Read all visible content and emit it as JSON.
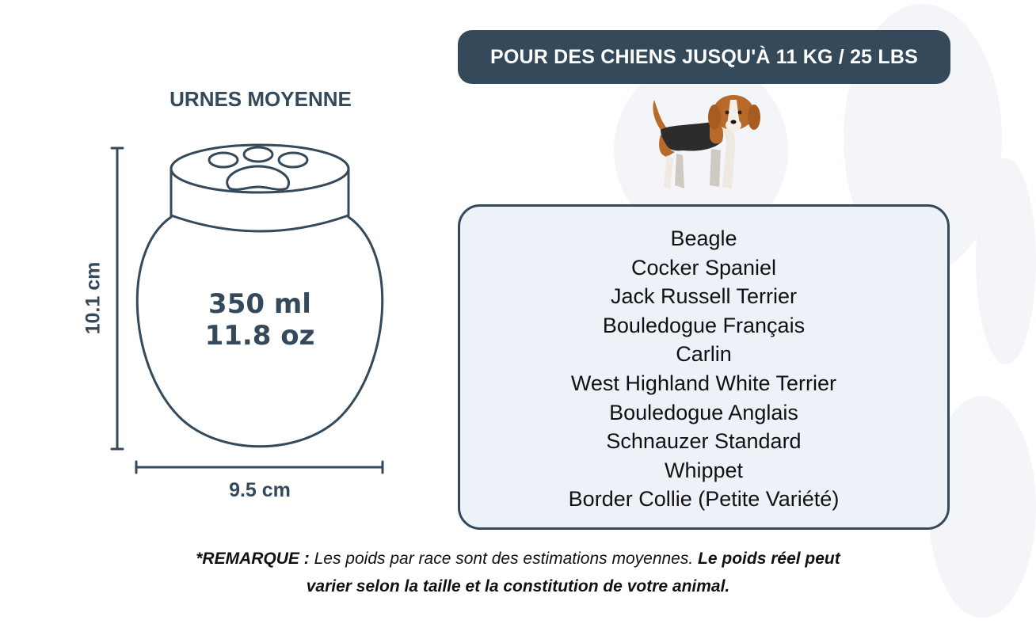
{
  "banner": {
    "text": "POUR DES CHIENS JUSQU'À 11 KG / 25 LBS"
  },
  "urn": {
    "title": "URNES MOYENNE",
    "volume_ml": "350 ml",
    "volume_oz": "11.8 oz",
    "height": "10.1 cm",
    "width": "9.5 cm"
  },
  "dog_icon": "beagle-illustration",
  "breeds": [
    "Beagle",
    "Cocker Spaniel",
    "Jack Russell Terrier",
    "Bouledogue Français",
    "Carlin",
    "West Highland White Terrier",
    "Bouledogue Anglais",
    "Schnauzer Standard",
    "Whippet",
    "Border Collie (Petite Variété)"
  ],
  "note": {
    "label": "*REMARQUE :",
    "text": "Les poids par race sont des estimations moyennes.",
    "emphasis_line1": "Le poids réel peut",
    "emphasis_line2": "varier selon la taille et la constitution de votre animal."
  },
  "colors": {
    "primary": "#34495a",
    "box_bg": "#edf2f9",
    "paw_bg": "#f2f4f7"
  }
}
